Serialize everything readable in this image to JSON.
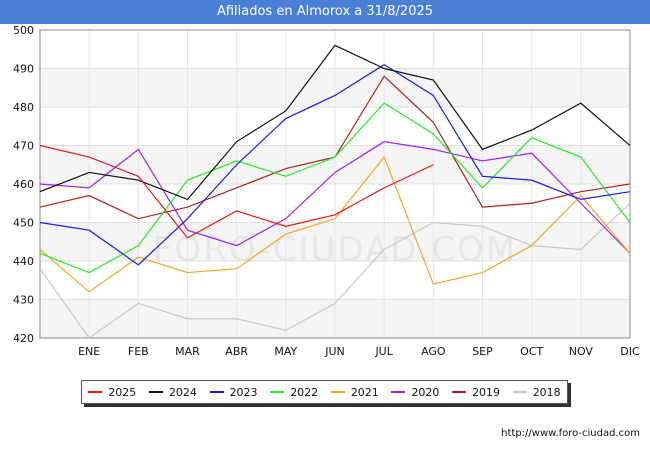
{
  "title": "Afiliados en Almorox a 31/8/2025",
  "source": "http://www.foro-ciudad.com",
  "watermark": "FORO-CIUDAD.COM",
  "chart_data": {
    "type": "line",
    "categories": [
      "",
      "ENE",
      "FEB",
      "MAR",
      "ABR",
      "MAY",
      "JUN",
      "JUL",
      "AGO",
      "SEP",
      "OCT",
      "NOV",
      "DIC"
    ],
    "ylim": [
      420,
      500
    ],
    "yticks": [
      420,
      430,
      440,
      450,
      460,
      470,
      480,
      490,
      500
    ],
    "grid": true,
    "legend_position": "bottom",
    "series": [
      {
        "name": "2025",
        "color": "#e8191a",
        "values": [
          470,
          467,
          462,
          446,
          453,
          449,
          452,
          459,
          465,
          null,
          null,
          null,
          null
        ]
      },
      {
        "name": "2024",
        "color": "#111111",
        "values": [
          458,
          463,
          461,
          456,
          471,
          479,
          496,
          490,
          487,
          469,
          474,
          481,
          470
        ]
      },
      {
        "name": "2023",
        "color": "#1a1ae6",
        "values": [
          450,
          448,
          439,
          451,
          465,
          477,
          483,
          491,
          483,
          462,
          461,
          456,
          458
        ]
      },
      {
        "name": "2022",
        "color": "#22ee22",
        "values": [
          442,
          437,
          444,
          461,
          466,
          462,
          467,
          481,
          473,
          459,
          472,
          467,
          450
        ]
      },
      {
        "name": "2021",
        "color": "#f5a623",
        "values": [
          443,
          432,
          441,
          437,
          438,
          447,
          451,
          467,
          434,
          437,
          444,
          457,
          442
        ]
      },
      {
        "name": "2020",
        "color": "#a020f0",
        "values": [
          460,
          459,
          469,
          448,
          444,
          451,
          463,
          471,
          469,
          466,
          468,
          455,
          442
        ]
      },
      {
        "name": "2019",
        "color": "#b22222",
        "values": [
          454,
          457,
          451,
          454,
          459,
          464,
          467,
          488,
          476,
          454,
          455,
          458,
          460
        ]
      },
      {
        "name": "2018",
        "color": "#c8c8c8",
        "values": [
          438,
          420,
          429,
          425,
          425,
          422,
          429,
          443,
          450,
          449,
          444,
          443,
          455
        ]
      }
    ]
  }
}
